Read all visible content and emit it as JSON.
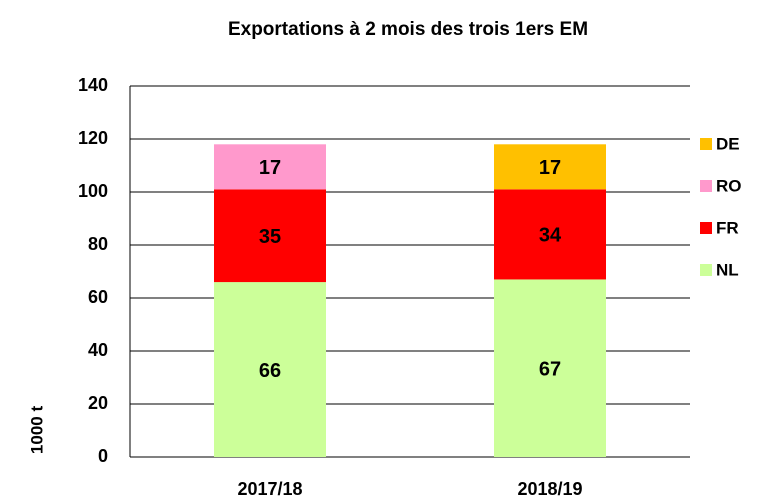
{
  "chart_data": {
    "type": "stacked-bar",
    "title": "Exportations à 2 mois des trois 1ers EM",
    "y_label": "1000 t",
    "categories": [
      "2017/18",
      "2018/19"
    ],
    "series": [
      {
        "name": "NL",
        "color": "#ccff99",
        "values": [
          66,
          67
        ]
      },
      {
        "name": "FR",
        "color": "#ff0000",
        "values": [
          35,
          34
        ]
      },
      {
        "name": "RO",
        "color": "#ff99cc",
        "values": [
          17,
          null
        ]
      },
      {
        "name": "DE",
        "color": "#ffc000",
        "values": [
          null,
          17
        ]
      }
    ],
    "ylim": [
      0,
      140
    ],
    "yticks": [
      0,
      20,
      40,
      60,
      80,
      100,
      120,
      140
    ],
    "grid": true,
    "legend": "right"
  }
}
